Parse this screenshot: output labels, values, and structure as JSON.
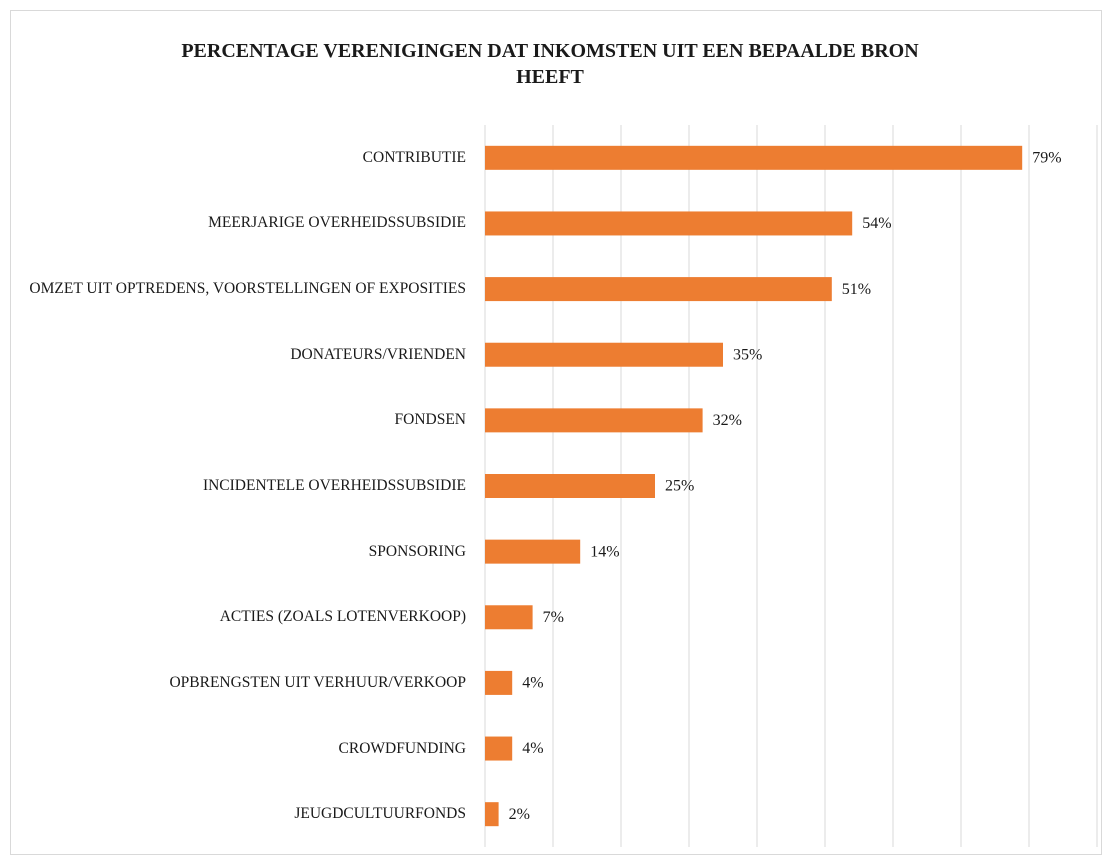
{
  "chart_data": {
    "type": "bar",
    "orientation": "horizontal",
    "title": "PERCENTAGE VERENIGINGEN DAT INKOMSTEN UIT EEN BEPAALDE BRON HEEFT",
    "categories": [
      "CONTRIBUTIE",
      "MEERJARIGE OVERHEIDSSUBSIDIE",
      "OMZET UIT OPTREDENS, VOORSTELLINGEN OF EXPOSITIES",
      "DONATEURS/VRIENDEN",
      "FONDSEN",
      "INCIDENTELE OVERHEIDSSUBSIDIE",
      "SPONSORING",
      "ACTIES (ZOALS LOTENVERKOOP)",
      "OPBRENGSTEN UIT VERHUUR/VERKOOP",
      "CROWDFUNDING",
      "JEUGDCULTUURFONDS"
    ],
    "values": [
      79,
      54,
      51,
      35,
      32,
      25,
      14,
      7,
      4,
      4,
      2
    ],
    "value_labels": [
      "79%",
      "54%",
      "51%",
      "35%",
      "32%",
      "25%",
      "14%",
      "7%",
      "4%",
      "4%",
      "2%"
    ],
    "color": "#ed7d31",
    "xlim": [
      0,
      90
    ],
    "xticks": [
      0,
      10,
      20,
      30,
      40,
      50,
      60,
      70,
      80,
      90
    ],
    "grid": true
  }
}
